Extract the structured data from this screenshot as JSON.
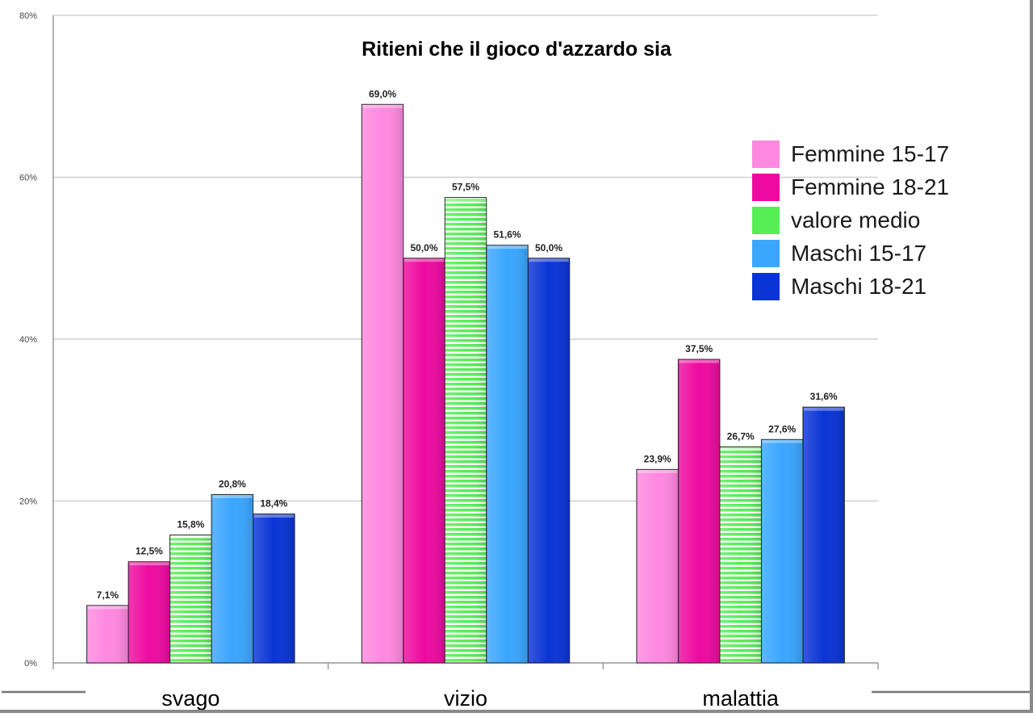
{
  "chart_data": {
    "type": "bar",
    "title": "Ritieni che il gioco d'azzardo sia",
    "xlabel": "",
    "ylabel": "",
    "categories": [
      "svago",
      "vizio",
      "malattia"
    ],
    "ylim": [
      0,
      80
    ],
    "yticks": [
      "0%",
      "20%",
      "40%",
      "60%",
      "80%"
    ],
    "grid": true,
    "legend_position": "right",
    "series": [
      {
        "name": "Femmine 15-17",
        "color": "#ff88e0",
        "values": [
          7.1,
          69.0,
          23.9
        ],
        "labels": [
          "7,1%",
          "69,0%",
          "23,9%"
        ]
      },
      {
        "name": "Femmine 18-21",
        "color": "#ee0aa0",
        "values": [
          12.5,
          50.0,
          37.5
        ],
        "labels": [
          "12,5%",
          "50,0%",
          "37,5%"
        ]
      },
      {
        "name": "valore medio",
        "color": "#55ee55",
        "pattern": "horizontal-stripes",
        "values": [
          15.8,
          57.5,
          26.7
        ],
        "labels": [
          "15,8%",
          "57,5%",
          "26,7%"
        ]
      },
      {
        "name": "Maschi 15-17",
        "color": "#3aa6ff",
        "values": [
          20.8,
          51.6,
          27.6
        ],
        "labels": [
          "20,8%",
          "51,6%",
          "27,6%"
        ]
      },
      {
        "name": "Maschi 18-21",
        "color": "#0a34d6",
        "values": [
          18.4,
          50.0,
          31.6
        ],
        "labels": [
          "18,4%",
          "50,0%",
          "31,6%"
        ]
      }
    ]
  }
}
